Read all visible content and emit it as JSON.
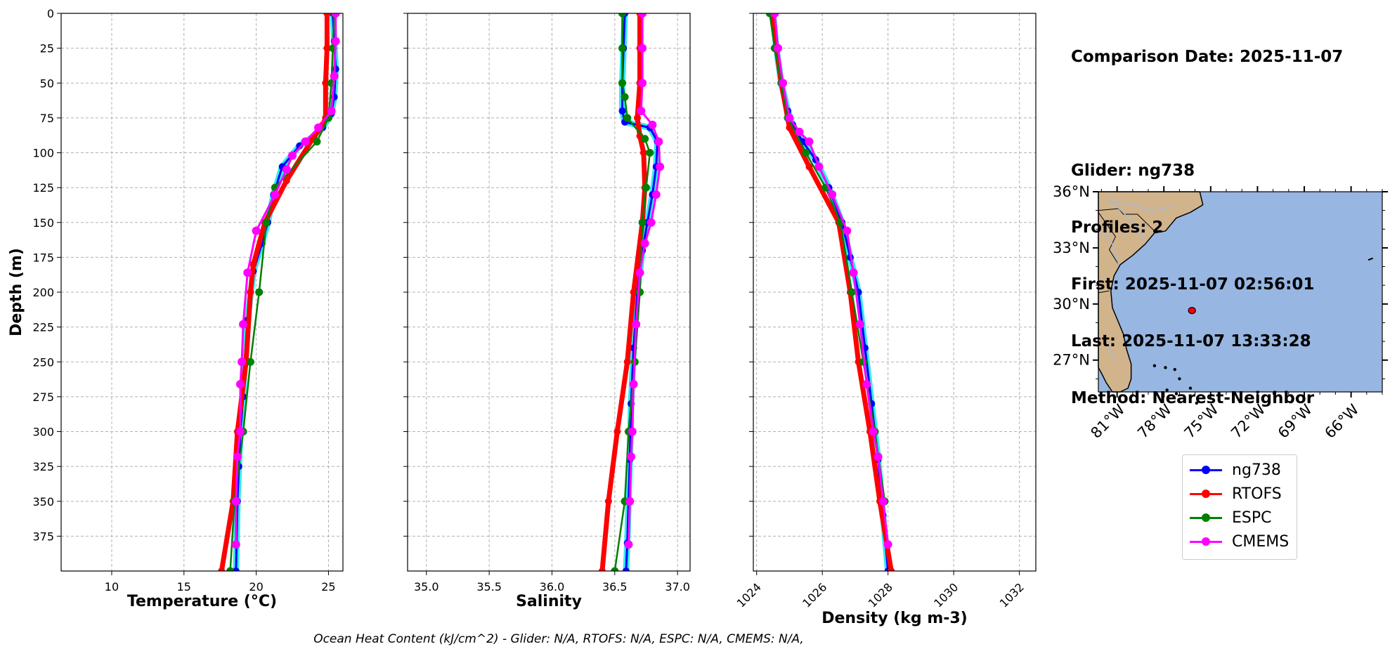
{
  "info": {
    "comparison_date": "Comparison Date: 2025-11-07",
    "glider": "Glider: ng738",
    "profiles": "Profiles: 2",
    "first": "First: 2025-11-07 02:56:01",
    "last": "Last: 2025-11-07 13:33:28",
    "method": "Method: Nearest-Neighbor"
  },
  "ohc_text": "Ocean Heat Content (kJ/cm^2) - Glider: N/A,  RTOFS: N/A,  ESPC: N/A,  CMEMS: N/A,",
  "colors": {
    "ng738": "#0000ff",
    "RTOFS": "#ff0000",
    "ESPC": "#008000",
    "CMEMS": "#ff00ff",
    "glider_shadow": "#00e5ee",
    "ocean": "#97b6e1",
    "land": "#d2b48c"
  },
  "legend": [
    "ng738",
    "RTOFS",
    "ESPC",
    "CMEMS"
  ],
  "chart_data": [
    {
      "type": "line",
      "xlabel": "Temperature (°C)",
      "ylabel": "Depth (m)",
      "xlim": [
        6.5,
        26.0
      ],
      "ylim": [
        400,
        0
      ],
      "xticks": [
        10,
        15,
        20,
        25
      ],
      "yticks": [
        0,
        25,
        50,
        75,
        100,
        125,
        150,
        175,
        200,
        225,
        250,
        275,
        300,
        325,
        350,
        375
      ],
      "grid": true,
      "series": [
        {
          "name": "ng738",
          "x": [
            25.3,
            25.4,
            25.5,
            25.4,
            25.2,
            24.6,
            24.0,
            23.0,
            21.8,
            21.2,
            20.8,
            20.4,
            19.8,
            19.4,
            19.2,
            19.1,
            18.9,
            18.8,
            18.7,
            18.6
          ],
          "y": [
            0,
            20,
            40,
            60,
            72,
            82,
            88,
            95,
            110,
            130,
            150,
            165,
            185,
            220,
            250,
            275,
            300,
            325,
            350,
            400
          ]
        },
        {
          "name": "RTOFS",
          "x": [
            24.9,
            24.9,
            24.8,
            24.8,
            24.6,
            23.9,
            22.1,
            20.6,
            19.8,
            19.6,
            19.3,
            18.7,
            18.4,
            17.6
          ],
          "y": [
            0,
            25,
            50,
            75,
            80,
            90,
            120,
            150,
            180,
            200,
            250,
            300,
            350,
            400
          ]
        },
        {
          "name": "ESPC",
          "x": [
            25.4,
            25.3,
            25.2,
            25.0,
            24.2,
            21.3,
            20.7,
            20.2,
            19.6,
            19.1,
            18.5,
            18.2
          ],
          "y": [
            0,
            25,
            50,
            75,
            92,
            125,
            150,
            200,
            250,
            300,
            350,
            400
          ]
        },
        {
          "name": "CMEMS",
          "x": [
            25.5,
            25.5,
            25.4,
            25.2,
            24.3,
            23.4,
            22.5,
            22.1,
            21.3,
            20.0,
            19.4,
            19.1,
            19.0,
            18.9,
            18.9,
            18.7,
            18.6,
            18.6
          ],
          "y": [
            0,
            20,
            45,
            70,
            82,
            92,
            102,
            112,
            130,
            156,
            186,
            223,
            250,
            266,
            300,
            318,
            350,
            381
          ]
        }
      ]
    },
    {
      "type": "line",
      "xlabel": "Salinity",
      "xlim": [
        34.85,
        37.1
      ],
      "ylim": [
        400,
        0
      ],
      "xticks": [
        35.0,
        35.5,
        36.0,
        36.5,
        37.0
      ],
      "grid": true,
      "series": [
        {
          "name": "ng738",
          "x": [
            36.58,
            36.57,
            36.56,
            36.56,
            36.58,
            36.78,
            36.84,
            36.83,
            36.8,
            36.76,
            36.72,
            36.68,
            36.65,
            36.63,
            36.62,
            36.61,
            36.6,
            36.59
          ],
          "y": [
            0,
            25,
            50,
            70,
            78,
            82,
            92,
            110,
            130,
            150,
            170,
            200,
            240,
            280,
            320,
            350,
            380,
            400
          ]
        },
        {
          "name": "RTOFS",
          "x": [
            36.7,
            36.7,
            36.7,
            36.68,
            36.7,
            36.73,
            36.74,
            36.72,
            36.65,
            36.6,
            36.52,
            36.45,
            36.4
          ],
          "y": [
            0,
            25,
            50,
            75,
            88,
            100,
            125,
            150,
            200,
            250,
            300,
            350,
            400
          ]
        },
        {
          "name": "ESPC",
          "x": [
            36.56,
            36.56,
            36.56,
            36.58,
            36.6,
            36.74,
            36.78,
            36.75,
            36.72,
            36.7,
            36.66,
            36.61,
            36.58,
            36.5
          ],
          "y": [
            0,
            25,
            50,
            60,
            75,
            90,
            100,
            125,
            150,
            200,
            250,
            300,
            350,
            400
          ]
        },
        {
          "name": "CMEMS",
          "x": [
            36.72,
            36.72,
            36.72,
            36.71,
            36.8,
            36.85,
            36.86,
            36.83,
            36.79,
            36.74,
            36.7,
            36.67,
            36.65,
            36.64,
            36.63,
            36.62,
            36.61
          ],
          "y": [
            0,
            25,
            50,
            70,
            80,
            92,
            110,
            130,
            150,
            165,
            186,
            223,
            266,
            300,
            318,
            350,
            381
          ]
        }
      ]
    },
    {
      "type": "line",
      "xlabel": "Density (kg m-3)",
      "xlim": [
        1023.9,
        1032.5
      ],
      "ylim": [
        400,
        0
      ],
      "xticks": [
        1024,
        1026,
        1028,
        1030,
        1032
      ],
      "grid": true,
      "series": [
        {
          "name": "ng738",
          "x": [
            1024.5,
            1024.6,
            1024.75,
            1024.95,
            1025.1,
            1025.4,
            1025.8,
            1026.2,
            1026.6,
            1026.85,
            1027.1,
            1027.3,
            1027.5,
            1027.7,
            1027.85,
            1028.0
          ],
          "y": [
            0,
            25,
            50,
            70,
            80,
            92,
            105,
            125,
            150,
            175,
            200,
            240,
            280,
            320,
            360,
            400
          ]
        },
        {
          "name": "RTOFS",
          "x": [
            1024.45,
            1024.6,
            1024.75,
            1025.0,
            1025.6,
            1026.5,
            1026.85,
            1027.1,
            1027.45,
            1027.75,
            1028.1
          ],
          "y": [
            0,
            25,
            50,
            82,
            110,
            150,
            200,
            250,
            300,
            350,
            400
          ]
        },
        {
          "name": "ESPC",
          "x": [
            1024.4,
            1024.55,
            1024.75,
            1024.95,
            1025.5,
            1026.1,
            1026.55,
            1026.9,
            1027.25,
            1027.6,
            1027.9
          ],
          "y": [
            0,
            25,
            50,
            75,
            100,
            125,
            150,
            200,
            250,
            300,
            350
          ]
        },
        {
          "name": "CMEMS",
          "x": [
            1024.55,
            1024.65,
            1024.8,
            1025.0,
            1025.3,
            1025.6,
            1025.9,
            1026.3,
            1026.75,
            1026.95,
            1027.15,
            1027.35,
            1027.55,
            1027.7,
            1027.85,
            1028.0
          ],
          "y": [
            0,
            25,
            50,
            75,
            85,
            92,
            110,
            130,
            156,
            186,
            223,
            266,
            300,
            318,
            350,
            381
          ]
        }
      ]
    },
    {
      "type": "map",
      "lat_range": [
        25.3,
        36.0
      ],
      "lon_range": [
        -82.2,
        -64.0
      ],
      "lat_ticks": [
        36,
        33,
        30,
        27
      ],
      "lat_labels": [
        "36°N",
        "33°N",
        "30°N",
        "27°N"
      ],
      "lon_ticks": [
        -81,
        -78,
        -75,
        -72,
        -69,
        -66
      ],
      "lon_labels": [
        "81°W",
        "78°W",
        "75°W",
        "72°W",
        "69°W",
        "66°W"
      ],
      "glider_position": {
        "lat": 29.65,
        "lon": -76.2
      }
    }
  ]
}
